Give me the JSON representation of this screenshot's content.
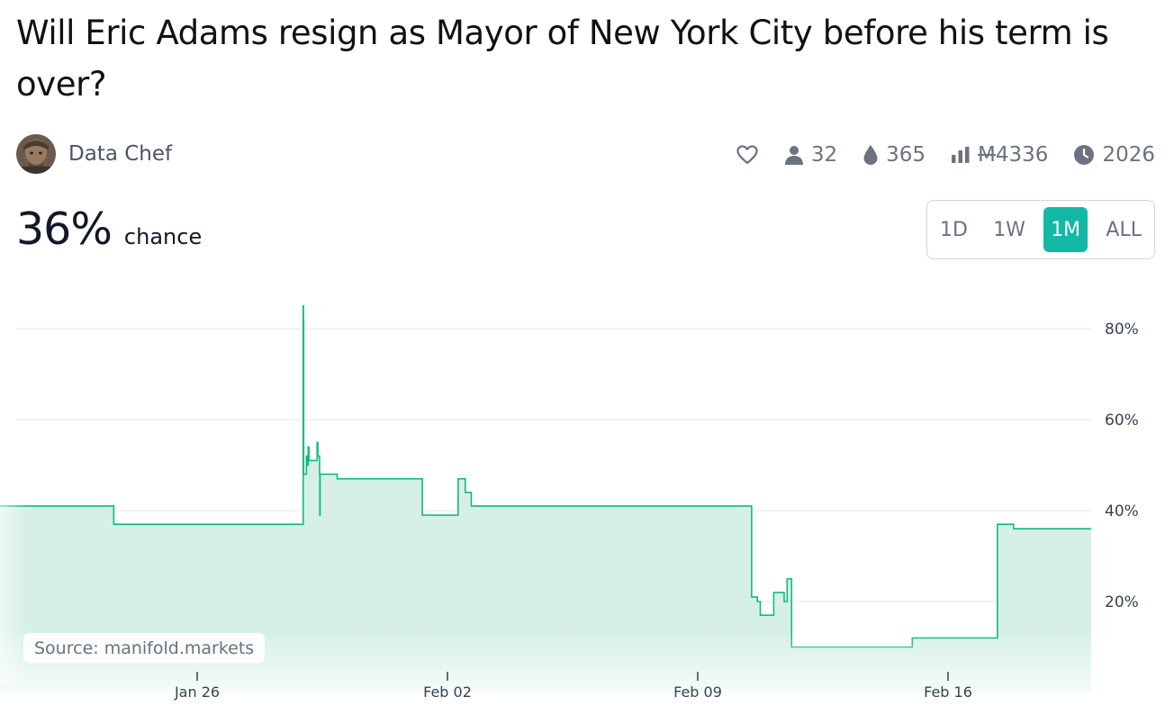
{
  "market": {
    "title": "Will Eric Adams resign as Mayor of New York City before his term is over?",
    "creator_name": "Data Chef",
    "probability": "36%",
    "probability_label": "chance"
  },
  "stats": {
    "like_icon": "heart-icon",
    "traders_icon": "user-icon",
    "traders": "32",
    "liquidity_icon": "droplet-icon",
    "liquidity": "365",
    "volume_icon": "bar-chart-icon",
    "volume_currency": "M",
    "volume": "4336",
    "close_icon": "clock-icon",
    "close_year": "2026"
  },
  "time_range": {
    "options": [
      "1D",
      "1W",
      "1M",
      "ALL"
    ],
    "selected": "1M"
  },
  "source": "Source: manifold.markets",
  "colors": {
    "accent": "#14b8a6",
    "line": "#11b981",
    "area": "#d6f0e6",
    "grid": "#e5e7eb",
    "text_muted": "#6b7280"
  },
  "chart_data": {
    "type": "line",
    "step": "after",
    "x_label_ticks": [
      "Jan 26",
      "Feb 02",
      "Feb 09",
      "Feb 16"
    ],
    "y_ticks": [
      "20%",
      "40%",
      "60%",
      "80%"
    ],
    "ylim": [
      0,
      100
    ],
    "grid": true,
    "series": [
      {
        "values": [
          {
            "t": "Jan 22 08:00",
            "p": 41
          },
          {
            "t": "Jan 22 14:00",
            "p": 41
          },
          {
            "t": "Jan 22 21:00",
            "p": 41
          },
          {
            "t": "Jan 23 06:00",
            "p": 41
          },
          {
            "t": "Jan 23 16:00",
            "p": 37
          },
          {
            "t": "Jan 25 10:00",
            "p": 37
          },
          {
            "t": "Jan 28 23:00",
            "p": 37
          },
          {
            "t": "Jan 28 23:10",
            "p": 85
          },
          {
            "t": "Jan 28 23:20",
            "p": 82
          },
          {
            "t": "Jan 28 23:30",
            "p": 48
          },
          {
            "t": "Jan 29 01:00",
            "p": 48
          },
          {
            "t": "Jan 29 01:20",
            "p": 52
          },
          {
            "t": "Jan 29 02:00",
            "p": 50
          },
          {
            "t": "Jan 29 02:30",
            "p": 54
          },
          {
            "t": "Jan 29 03:00",
            "p": 51
          },
          {
            "t": "Jan 29 08:00",
            "p": 51
          },
          {
            "t": "Jan 29 08:30",
            "p": 55
          },
          {
            "t": "Jan 29 09:00",
            "p": 52
          },
          {
            "t": "Jan 29 10:00",
            "p": 52
          },
          {
            "t": "Jan 29 10:10",
            "p": 48
          },
          {
            "t": "Jan 29 10:20",
            "p": 39
          },
          {
            "t": "Jan 29 10:30",
            "p": 48
          },
          {
            "t": "Jan 29 22:00",
            "p": 47
          },
          {
            "t": "Feb 01 07:00",
            "p": 47
          },
          {
            "t": "Feb 01 07:10",
            "p": 39
          },
          {
            "t": "Feb 02 07:00",
            "p": 39
          },
          {
            "t": "Feb 02 07:10",
            "p": 47
          },
          {
            "t": "Feb 02 12:00",
            "p": 44
          },
          {
            "t": "Feb 02 14:00",
            "p": 44
          },
          {
            "t": "Feb 02 16:00",
            "p": 41
          },
          {
            "t": "Feb 05 11:00",
            "p": 41
          },
          {
            "t": "Feb 05 11:10",
            "p": 41
          },
          {
            "t": "Feb 10 12:00",
            "p": 41
          },
          {
            "t": "Feb 10 12:10",
            "p": 21
          },
          {
            "t": "Feb 10 16:00",
            "p": 20
          },
          {
            "t": "Feb 10 18:00",
            "p": 17
          },
          {
            "t": "Feb 11 03:00",
            "p": 22
          },
          {
            "t": "Feb 11 10:00",
            "p": 20
          },
          {
            "t": "Feb 11 12:00",
            "p": 25
          },
          {
            "t": "Feb 11 15:00",
            "p": 10
          },
          {
            "t": "Feb 14 14:00",
            "p": 10
          },
          {
            "t": "Feb 14 14:10",
            "p": 10
          },
          {
            "t": "Feb 15 00:00",
            "p": 12
          },
          {
            "t": "Feb 17 09:00",
            "p": 12
          },
          {
            "t": "Feb 17 09:10",
            "p": 37
          },
          {
            "t": "Feb 17 20:00",
            "p": 36
          },
          {
            "t": "Feb 20 08:00",
            "p": 36
          }
        ]
      }
    ]
  }
}
